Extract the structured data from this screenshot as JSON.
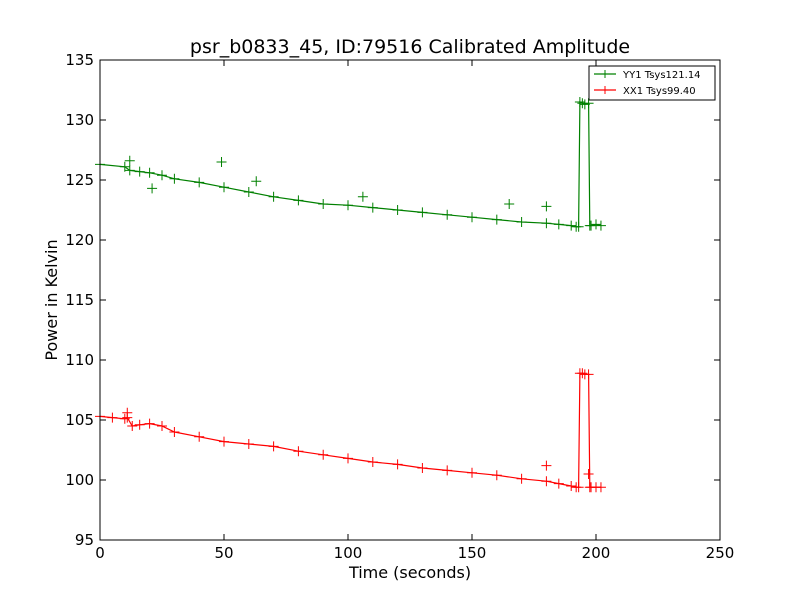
{
  "chart_data": {
    "type": "line",
    "title": "psr_b0833_45, ID:79516 Calibrated Amplitude",
    "xlabel": "Time (seconds)",
    "ylabel": "Power in Kelvin",
    "xlim": [
      0,
      250
    ],
    "ylim": [
      95,
      135
    ],
    "xticks": [
      0,
      50,
      100,
      150,
      200,
      250
    ],
    "yticks": [
      95,
      100,
      105,
      110,
      115,
      120,
      125,
      130,
      135
    ],
    "grid": false,
    "legend_position": "top-right",
    "marker": "plus",
    "series": [
      {
        "name": "YY1 Tsys121.14",
        "color": "#008000",
        "x": [
          0,
          10,
          12,
          16,
          20,
          25,
          30,
          40,
          50,
          60,
          70,
          80,
          90,
          100,
          110,
          120,
          130,
          140,
          150,
          160,
          170,
          180,
          185,
          190,
          192,
          193,
          193.5,
          194.5,
          195.5,
          197,
          197.5,
          198,
          200,
          202
        ],
        "y": [
          126.3,
          126.1,
          125.8,
          125.7,
          125.6,
          125.4,
          125.1,
          124.8,
          124.4,
          124.0,
          123.6,
          123.3,
          123.0,
          122.9,
          122.7,
          122.5,
          122.3,
          122.1,
          121.9,
          121.7,
          121.5,
          121.4,
          121.3,
          121.2,
          121.1,
          121.1,
          131.5,
          131.4,
          131.3,
          131.4,
          121.2,
          121.2,
          121.3,
          121.2
        ]
      },
      {
        "name": "XX1 Tsys99.40",
        "color": "#ff0000",
        "x": [
          0,
          5,
          10,
          11,
          13,
          16,
          20,
          25,
          30,
          40,
          50,
          60,
          70,
          80,
          90,
          100,
          110,
          120,
          130,
          140,
          150,
          160,
          170,
          180,
          185,
          190,
          192,
          193,
          193.5,
          194.5,
          195.5,
          197,
          197.5,
          198,
          200,
          202
        ],
        "y": [
          105.3,
          105.2,
          105.1,
          105.2,
          104.5,
          104.6,
          104.7,
          104.5,
          104.0,
          103.6,
          103.2,
          103.0,
          102.8,
          102.4,
          102.1,
          101.8,
          101.5,
          101.3,
          101.0,
          100.8,
          100.6,
          100.4,
          100.1,
          99.9,
          99.7,
          99.5,
          99.4,
          99.4,
          108.9,
          108.9,
          108.8,
          108.8,
          99.4,
          99.4,
          99.4,
          99.4
        ]
      }
    ],
    "outliers": [
      {
        "series": 0,
        "x": 12,
        "y": 126.6
      },
      {
        "series": 0,
        "x": 21,
        "y": 124.3
      },
      {
        "series": 0,
        "x": 49,
        "y": 126.5
      },
      {
        "series": 0,
        "x": 63,
        "y": 124.9
      },
      {
        "series": 0,
        "x": 106,
        "y": 123.6
      },
      {
        "series": 0,
        "x": 165,
        "y": 123.0
      },
      {
        "series": 0,
        "x": 180,
        "y": 122.8
      },
      {
        "series": 1,
        "x": 11,
        "y": 105.6
      },
      {
        "series": 1,
        "x": 180,
        "y": 101.2
      },
      {
        "series": 1,
        "x": 197,
        "y": 100.5
      }
    ]
  }
}
